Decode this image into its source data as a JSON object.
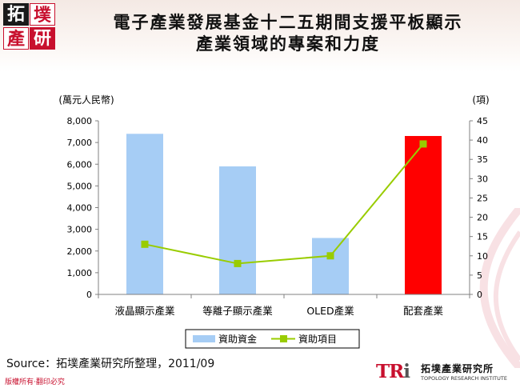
{
  "header": {
    "logo_chars": [
      "拓",
      "墣",
      "產",
      "研"
    ],
    "title_line1": "電子產業發展基金十二五期間支援平板顯示",
    "title_line2": "產業領域的專案和力度"
  },
  "chart_data": {
    "type": "bar",
    "categories": [
      "液晶顯示產業",
      "等離子顯示產業",
      "OLED產業",
      "配套產業"
    ],
    "series": [
      {
        "name": "資助資金",
        "kind": "bar",
        "axis": "left",
        "values": [
          7400,
          5900,
          2600,
          7300
        ],
        "colors": [
          "#a6cdf5",
          "#a6cdf5",
          "#a6cdf5",
          "#ff0000"
        ]
      },
      {
        "name": "資助項目",
        "kind": "line",
        "axis": "right",
        "values": [
          13,
          8,
          10,
          39
        ],
        "color": "#99cc00"
      }
    ],
    "ylabel": "(萬元人民幣)",
    "y2label": "(項)",
    "ylim": [
      0,
      8000
    ],
    "y2lim": [
      0,
      45
    ],
    "yticks": [
      "0",
      "1,000",
      "2,000",
      "3,000",
      "4,000",
      "5,000",
      "6,000",
      "7,000",
      "8,000"
    ],
    "y2ticks": [
      "0",
      "5",
      "10",
      "15",
      "20",
      "25",
      "30",
      "35",
      "40",
      "45"
    ],
    "legend_position": "bottom",
    "grid": false
  },
  "footer": {
    "source": "Source：拓墣產業研究所整理，2011/09",
    "copyright": "版權所有‧翻印必究",
    "brand_mark_red": "TR",
    "brand_mark_grey": "i",
    "brand_cn": "拓墣產業研究所",
    "brand_en": "TOPOLOGY RESEARCH INSTITUTE"
  }
}
